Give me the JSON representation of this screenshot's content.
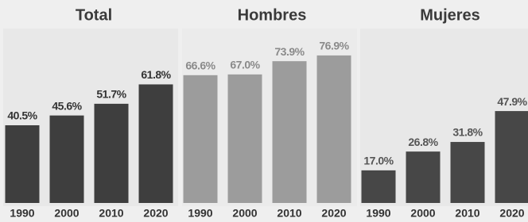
{
  "chart_data": [
    {
      "type": "bar",
      "title": "Total",
      "categories": [
        "1990",
        "2000",
        "2010",
        "2020"
      ],
      "values": [
        40.5,
        45.6,
        51.7,
        61.8
      ],
      "value_labels": [
        "40.5%",
        "45.6%",
        "51.7%",
        "61.8%"
      ],
      "color": "#3e3e3e",
      "ylim": [
        0,
        100
      ]
    },
    {
      "type": "bar",
      "title": "Hombres",
      "categories": [
        "1990",
        "2000",
        "2010",
        "2020"
      ],
      "values": [
        66.6,
        67.0,
        73.9,
        76.9
      ],
      "value_labels": [
        "66.6%",
        "67.0%",
        "73.9%",
        "76.9%"
      ],
      "color": "#9c9c9c",
      "ylim": [
        0,
        100
      ]
    },
    {
      "type": "bar",
      "title": "Mujeres",
      "categories": [
        "1990",
        "2000",
        "2010",
        "2020"
      ],
      "values": [
        17.0,
        26.8,
        31.8,
        47.9
      ],
      "value_labels": [
        "17.0%",
        "26.8%",
        "31.8%",
        "47.9%"
      ],
      "color": "#474747",
      "ylim": [
        0,
        100
      ]
    }
  ]
}
